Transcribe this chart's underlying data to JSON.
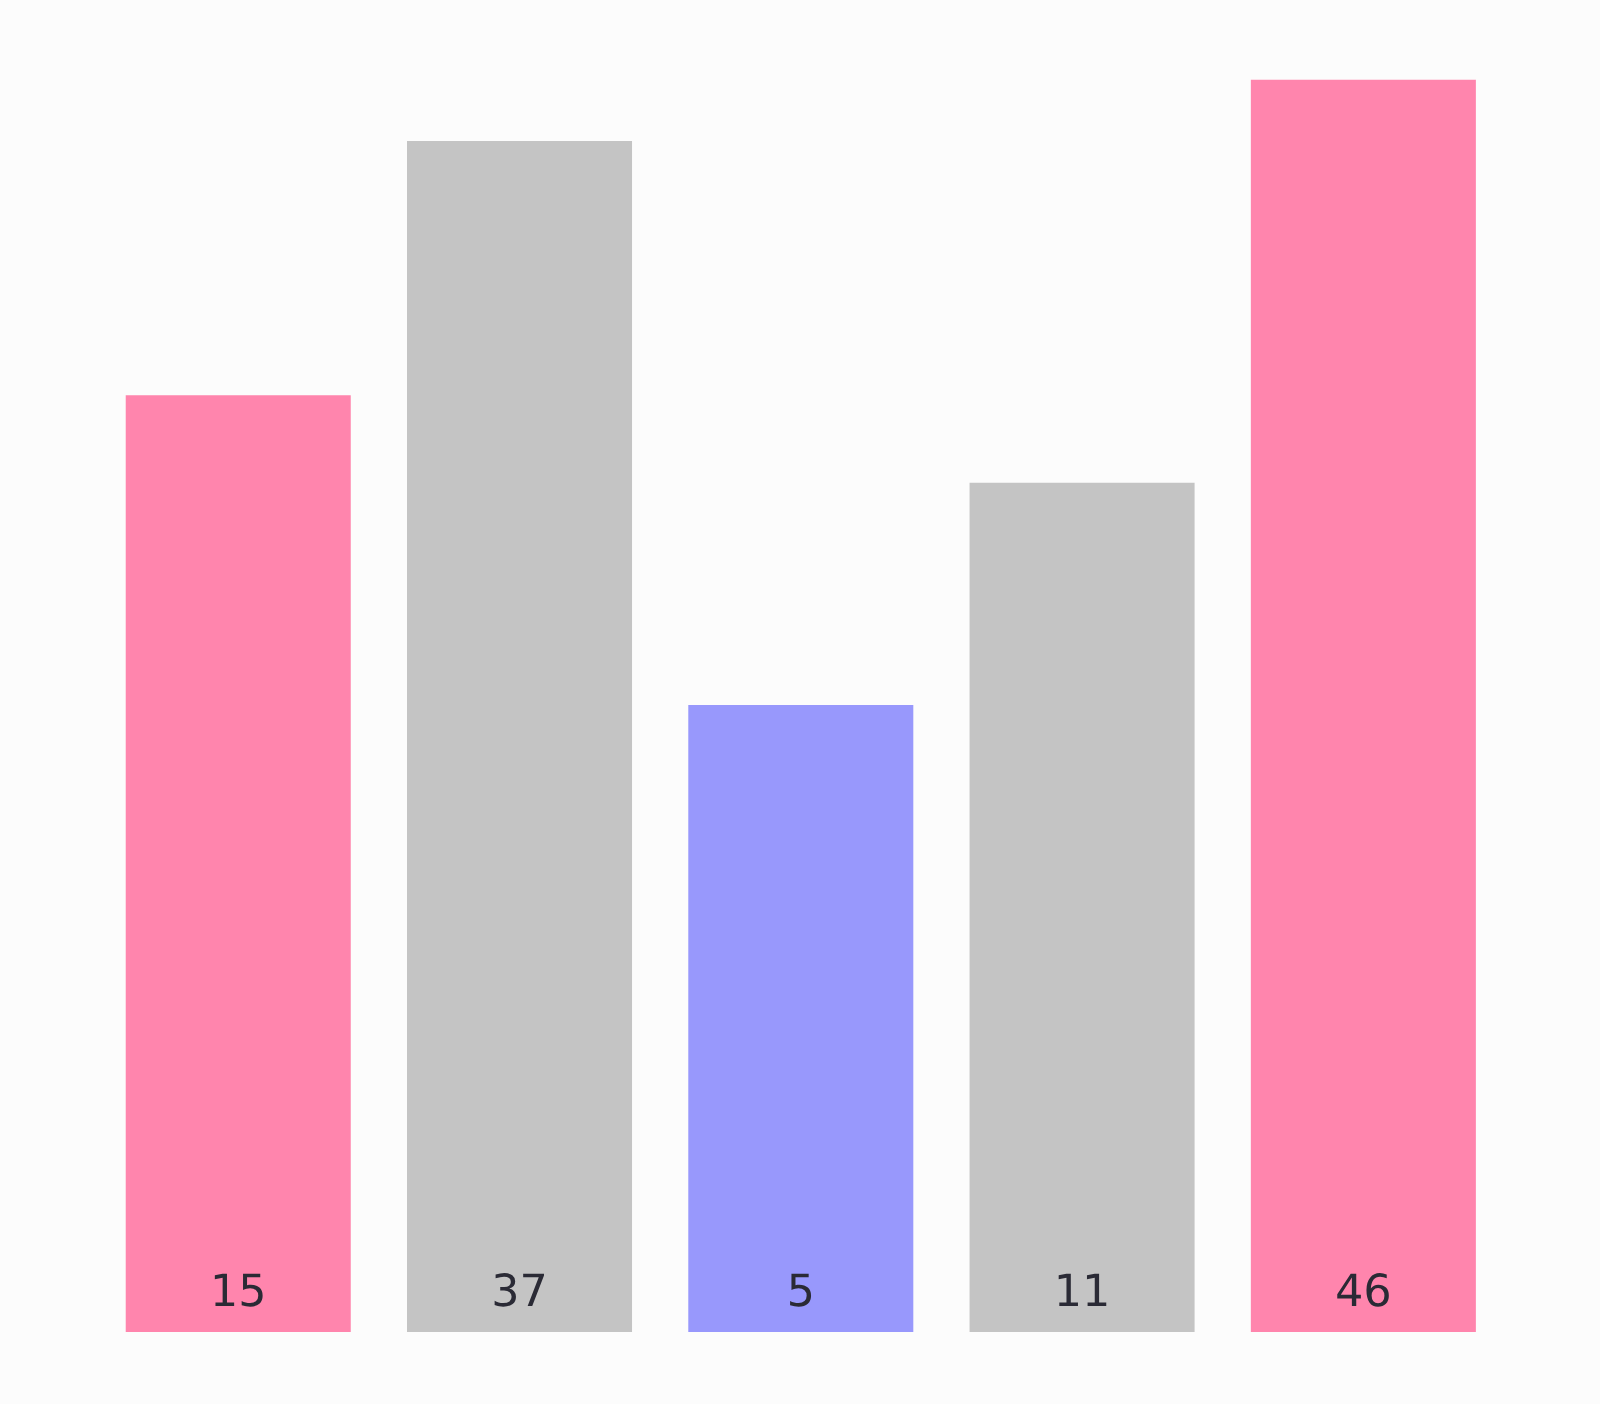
{
  "chart_data": {
    "type": "bar",
    "categories": [
      null,
      null,
      null,
      null,
      null
    ],
    "values": [
      15,
      37,
      5,
      11,
      46
    ],
    "colors": [
      "#ff85ad",
      "#c4c4c4",
      "#9898fc",
      "#c4c4c4",
      "#ff85ad"
    ],
    "data_labels": true,
    "log": "y",
    "ylim": [
      0.54,
      46
    ],
    "grid": false,
    "legend": false
  }
}
